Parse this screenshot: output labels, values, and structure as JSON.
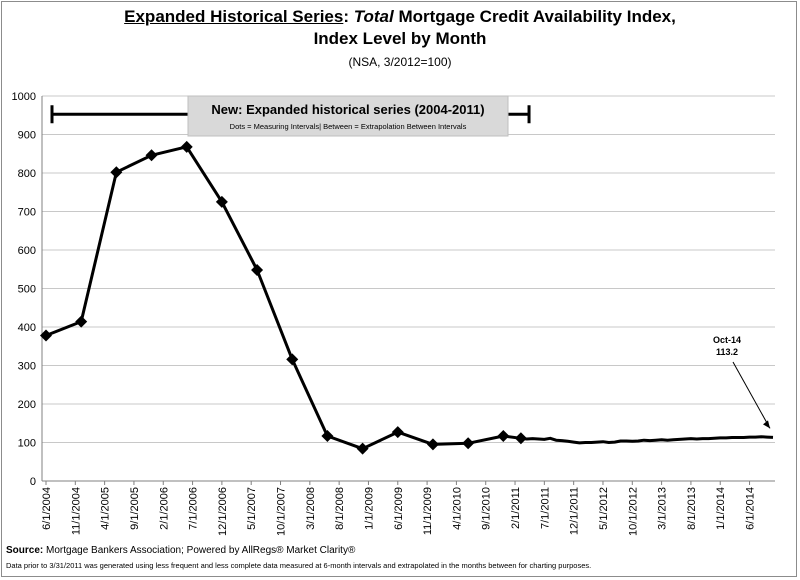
{
  "title": {
    "part1": "Expanded Historical Series",
    "part2": ": ",
    "part3": "Total",
    "part4": " Mortgage Credit Availability Index,",
    "line2": "Index Level by Month",
    "line3": "(NSA, 3/2012=100)"
  },
  "banner": {
    "title": "New: Expanded historical series (2004-2011)",
    "subtitle": "Dots = Measuring Intervals| Between = Extrapolation Between Intervals"
  },
  "callout": {
    "label": "Oct-14",
    "value": "113.2"
  },
  "source": {
    "label": "Source:",
    "text": " Mortgage Bankers Association; Powered by AllRegs® Market Clarity®"
  },
  "note": "Data prior to 3/31/2011 was generated using less frequent and less complete data measured at 6-month intervals and extrapolated in the months between for charting purposes.",
  "colors": {
    "line": "#000000",
    "banner_bg": "#d9d9d9",
    "grid": "#c8c8c8"
  },
  "chart_data": {
    "type": "line",
    "ylim": [
      0,
      1000
    ],
    "ytick_labels": [
      "0",
      "100",
      "200",
      "300",
      "400",
      "500",
      "600",
      "700",
      "800",
      "900",
      "1000"
    ],
    "x_tick_labels": [
      "6/1/2004",
      "11/1/2004",
      "4/1/2005",
      "9/1/2005",
      "2/1/2006",
      "7/1/2006",
      "12/1/2006",
      "5/1/2007",
      "10/1/2007",
      "3/1/2008",
      "8/1/2008",
      "1/1/2009",
      "6/1/2009",
      "11/1/2009",
      "4/1/2010",
      "9/1/2010",
      "2/1/2011",
      "7/1/2011",
      "12/1/2011",
      "5/1/2012",
      "10/1/2012",
      "3/1/2013",
      "8/1/2013",
      "1/1/2014",
      "6/1/2014"
    ],
    "grid": true,
    "range_bar": {
      "start": "6/1/2004",
      "end": "2/1/2011"
    },
    "series": [
      {
        "markers": [
          {
            "date": "6/1/2004",
            "value": 378
          },
          {
            "date": "12/1/2004",
            "value": 414
          },
          {
            "date": "6/1/2005",
            "value": 802
          },
          {
            "date": "12/1/2005",
            "value": 846
          },
          {
            "date": "6/1/2006",
            "value": 868
          },
          {
            "date": "12/1/2006",
            "value": 725
          },
          {
            "date": "6/1/2007",
            "value": 548
          },
          {
            "date": "12/1/2007",
            "value": 316
          },
          {
            "date": "6/1/2008",
            "value": 117
          },
          {
            "date": "12/1/2008",
            "value": 84
          },
          {
            "date": "6/1/2009",
            "value": 127
          },
          {
            "date": "12/1/2009",
            "value": 95
          },
          {
            "date": "6/1/2010",
            "value": 98
          },
          {
            "date": "12/1/2010",
            "value": 117
          },
          {
            "date": "3/1/2011",
            "value": 111
          }
        ],
        "monthly": [
          {
            "date": "4/1/2011",
            "value": 109
          },
          {
            "date": "5/1/2011",
            "value": 110
          },
          {
            "date": "6/1/2011",
            "value": 109
          },
          {
            "date": "7/1/2011",
            "value": 108
          },
          {
            "date": "8/1/2011",
            "value": 111
          },
          {
            "date": "9/1/2011",
            "value": 106
          },
          {
            "date": "10/1/2011",
            "value": 105
          },
          {
            "date": "11/1/2011",
            "value": 103
          },
          {
            "date": "12/1/2011",
            "value": 101
          },
          {
            "date": "1/1/2012",
            "value": 99
          },
          {
            "date": "2/1/2012",
            "value": 100
          },
          {
            "date": "3/1/2012",
            "value": 100
          },
          {
            "date": "4/1/2012",
            "value": 101
          },
          {
            "date": "5/1/2012",
            "value": 102
          },
          {
            "date": "6/1/2012",
            "value": 100
          },
          {
            "date": "7/1/2012",
            "value": 101
          },
          {
            "date": "8/1/2012",
            "value": 104
          },
          {
            "date": "9/1/2012",
            "value": 104
          },
          {
            "date": "10/1/2012",
            "value": 103
          },
          {
            "date": "11/1/2012",
            "value": 104
          },
          {
            "date": "12/1/2012",
            "value": 106
          },
          {
            "date": "1/1/2013",
            "value": 105
          },
          {
            "date": "2/1/2013",
            "value": 106
          },
          {
            "date": "3/1/2013",
            "value": 107
          },
          {
            "date": "4/1/2013",
            "value": 106
          },
          {
            "date": "5/1/2013",
            "value": 107
          },
          {
            "date": "6/1/2013",
            "value": 108
          },
          {
            "date": "7/1/2013",
            "value": 109
          },
          {
            "date": "8/1/2013",
            "value": 110
          },
          {
            "date": "9/1/2013",
            "value": 109
          },
          {
            "date": "10/1/2013",
            "value": 110
          },
          {
            "date": "11/1/2013",
            "value": 110
          },
          {
            "date": "12/1/2013",
            "value": 111
          },
          {
            "date": "1/1/2014",
            "value": 112
          },
          {
            "date": "2/1/2014",
            "value": 112
          },
          {
            "date": "3/1/2014",
            "value": 113
          },
          {
            "date": "4/1/2014",
            "value": 113
          },
          {
            "date": "5/1/2014",
            "value": 113
          },
          {
            "date": "6/1/2014",
            "value": 114
          },
          {
            "date": "7/1/2014",
            "value": 114
          },
          {
            "date": "8/1/2014",
            "value": 115
          },
          {
            "date": "9/1/2014",
            "value": 114
          },
          {
            "date": "10/1/2014",
            "value": 113.2
          }
        ]
      }
    ]
  }
}
